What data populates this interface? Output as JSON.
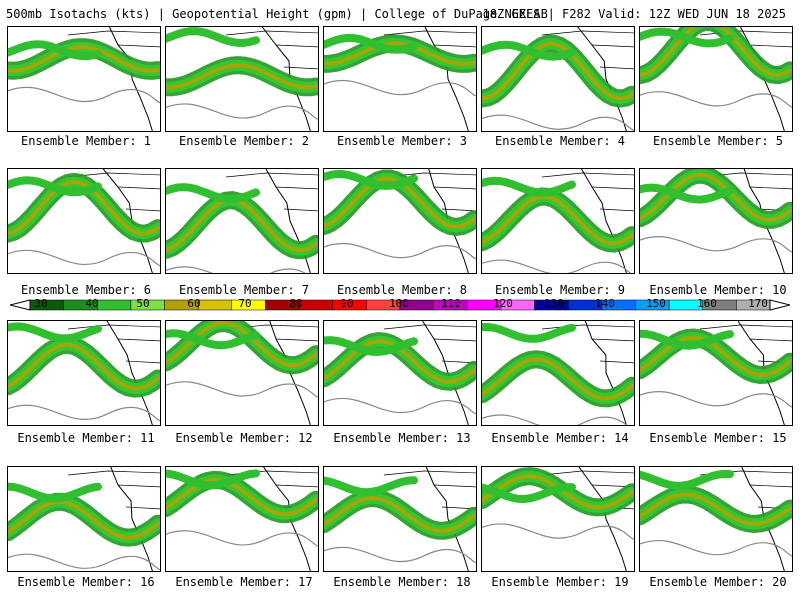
{
  "header": {
    "left": "500mb Isotachs (kts) | Geopotential Height (gpm) | College of DuPage NEXLAB",
    "right": "18Z GEFS | F282 Valid: 12Z WED JUN 18 2025"
  },
  "members": [
    "Ensemble Member: 1",
    "Ensemble Member: 2",
    "Ensemble Member: 3",
    "Ensemble Member: 4",
    "Ensemble Member: 5",
    "Ensemble Member: 6",
    "Ensemble Member: 7",
    "Ensemble Member: 8",
    "Ensemble Member: 9",
    "Ensemble Member: 10",
    "Ensemble Member: 11",
    "Ensemble Member: 12",
    "Ensemble Member: 13",
    "Ensemble Member: 14",
    "Ensemble Member: 15",
    "Ensemble Member: 16",
    "Ensemble Member: 17",
    "Ensemble Member: 18",
    "Ensemble Member: 19",
    "Ensemble Member: 20"
  ],
  "colorbar": {
    "ticks": [
      "30",
      "40",
      "50",
      "60",
      "70",
      "80",
      "90",
      "100",
      "110",
      "120",
      "130",
      "140",
      "150",
      "160",
      "170"
    ],
    "colors": [
      "#0a5a0a",
      "#1e8c1e",
      "#2fbf2f",
      "#7fdf3f",
      "#b4a000",
      "#d6c200",
      "#ffff00",
      "#a00000",
      "#c80000",
      "#ff0000",
      "#ff4040",
      "#900090",
      "#c000c0",
      "#ff00ff",
      "#ff66ff",
      "#0000a0",
      "#0030d0",
      "#0070ff",
      "#00a0ff",
      "#00ffff",
      "#7f7f7f",
      "#b0b0b0"
    ]
  }
}
